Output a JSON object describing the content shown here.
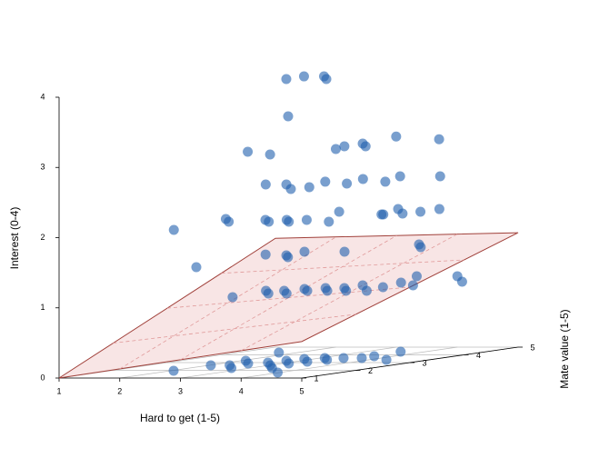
{
  "chart_data": {
    "type": "scatter3d",
    "x_label": "Hard to get (1-5)",
    "y_label": "Mate value (1-5)",
    "z_label": "Interest (0-4)",
    "xlim": [
      1,
      5
    ],
    "ylim": [
      1,
      5
    ],
    "zlim": [
      0,
      4
    ],
    "xticks": [
      1,
      2,
      3,
      4,
      5
    ],
    "yticks": [
      1,
      2,
      3,
      4,
      5
    ],
    "zticks": [
      0,
      1,
      2,
      3,
      4
    ],
    "grid": true,
    "color": "#1f5fad",
    "plane_color": "#f5dada",
    "plane_edge": "#a0403a",
    "plane_z": [
      0,
      0.52,
      1.63,
      1.55
    ],
    "x": [
      2.65,
      2.63,
      2.96,
      3.31,
      2.93,
      2.3,
      2.98,
      3.44,
      3.26,
      3.25,
      3.61,
      2.99,
      4.01,
      2.32,
      2.66,
      3.26,
      3.35,
      2.98,
      3.55,
      3.29,
      3.97,
      3.59,
      4.25,
      2.0,
      1.6,
      1.96,
      2.36,
      2.62,
      2.71,
      2.95,
      3.04,
      3.61,
      2.63,
      3.64,
      3.67,
      3.29,
      3.88,
      3.97,
      3.97,
      2.62,
      2.3,
      2.74,
      2.98,
      2.62,
      3.28,
      3.67,
      4.01,
      4.06,
      4.32,
      4.63,
      2.63,
      2.44,
      2.8,
      2.74,
      3.1,
      2.87,
      3.12,
      3.11,
      3.45,
      3.42,
      3.76,
      3.41,
      4.1,
      3.95,
      3.73,
      4.24,
      2.05,
      2.03,
      2.34,
      2.69,
      2.08,
      2.44,
      2.66,
      3.01,
      3.36,
      3.97,
      1.69,
      2.75,
      3.11,
      2.84,
      3.2,
      3.07,
      3.32,
      3.38,
      3.68,
      3.68,
      4.3,
      3.59
    ],
    "y": [
      3.35,
      3.7,
      3.7,
      3.35,
      3.07,
      3.03,
      2.68,
      3.38,
      3.74,
      4.09,
      3.74,
      5.0,
      4.65,
      3.34,
      3.34,
      2.75,
      2.99,
      3.7,
      3.46,
      4.05,
      3.7,
      4.4,
      4.4,
      2.0,
      3.41,
      3.06,
      3.29,
      3.06,
      3.29,
      3.06,
      3.29,
      3.06,
      4.35,
      4.0,
      4.0,
      4.7,
      4.12,
      4.35,
      4.7,
      1.72,
      3.36,
      3.25,
      3.01,
      3.72,
      3.72,
      4.66,
      4.31,
      4.18,
      4.64,
      4.38,
      2.38,
      3.21,
      2.85,
      3.21,
      2.85,
      3.44,
      3.21,
      3.56,
      3.21,
      3.56,
      3.21,
      3.91,
      3.21,
      3.68,
      4.26,
      3.91,
      1.94,
      2.65,
      2.65,
      2.29,
      3.24,
      2.88,
      3.0,
      2.65,
      2.29,
      1.71,
      4.29,
      3.24,
      2.88,
      3.47,
      3.12,
      3.59,
      3.35,
      3.59,
      3.59,
      3.82,
      3.35,
      4.41
    ],
    "z": [
      4,
      4,
      4,
      4,
      3.5,
      3,
      3,
      3,
      3,
      3,
      3,
      3,
      3,
      2.5,
      2.5,
      2.5,
      2.5,
      2.5,
      2.5,
      2.5,
      2.5,
      2.5,
      2.5,
      2,
      2,
      2,
      2,
      2,
      2,
      2,
      2,
      2,
      2,
      2,
      2,
      2,
      2,
      2,
      2,
      1.5,
      1.5,
      1.5,
      1.5,
      1.5,
      1.5,
      1.5,
      1.5,
      1.1,
      1.05,
      1,
      1,
      1,
      1,
      1,
      1,
      1,
      1,
      1,
      1,
      1,
      1,
      1,
      1,
      1,
      1,
      1,
      0,
      0,
      0,
      0,
      0,
      0,
      0,
      0,
      0,
      0,
      0,
      0,
      0,
      0,
      0,
      0,
      0,
      0,
      0,
      0,
      0,
      0
    ]
  }
}
